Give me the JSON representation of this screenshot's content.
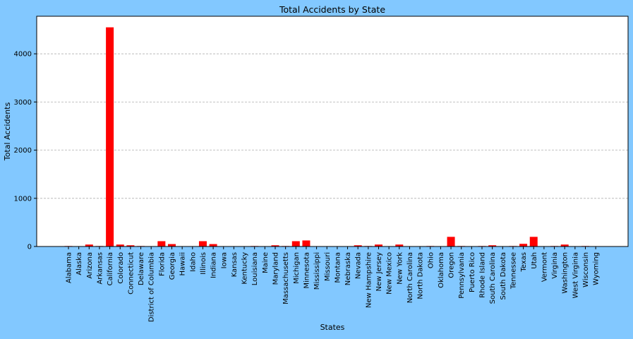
{
  "chart_data": {
    "type": "bar",
    "title": "Total Accidents by State",
    "xlabel": "States",
    "ylabel": "Total Accidents",
    "ylim": [
      0,
      4780
    ],
    "yticks": [
      0,
      1000,
      2000,
      3000,
      4000
    ],
    "grid": "y-dashed",
    "bar_color": "#ff0000",
    "figure_background": "#82c8ff",
    "plot_background": "#ffffff",
    "categories": [
      "Alabama",
      "Alaska",
      "Arizona",
      "Arkansas",
      "California",
      "Colorado",
      "Connecticut",
      "Delaware",
      "District of Columbia",
      "Florida",
      "Georgia",
      "Hawaii",
      "Idaho",
      "Illinois",
      "Indiana",
      "Iowa",
      "Kansas",
      "Kentucky",
      "Louisiana",
      "Maine",
      "Maryland",
      "Massachusetts",
      "Michigan",
      "Minnesota",
      "Mississippi",
      "Missouri",
      "Montana",
      "Nebraska",
      "Nevada",
      "New Hampshire",
      "New Jersey",
      "New Mexico",
      "New York",
      "North Carolina",
      "North Dakota",
      "Ohio",
      "Oklahoma",
      "Oregon",
      "Pennsylvania",
      "Puerto Rico",
      "Rhode Island",
      "South Carolina",
      "South Dakota",
      "Tennessee",
      "Texas",
      "Utah",
      "Vermont",
      "Virginia",
      "Washington",
      "West Virginia",
      "Wisconsin",
      "Wyoming"
    ],
    "values": [
      10,
      0,
      40,
      10,
      4550,
      40,
      25,
      10,
      0,
      110,
      50,
      0,
      0,
      110,
      50,
      0,
      0,
      0,
      10,
      0,
      25,
      10,
      110,
      125,
      0,
      0,
      0,
      0,
      25,
      10,
      40,
      0,
      40,
      0,
      0,
      10,
      0,
      200,
      10,
      0,
      10,
      25,
      0,
      10,
      55,
      200,
      0,
      10,
      40,
      0,
      10,
      0
    ]
  }
}
